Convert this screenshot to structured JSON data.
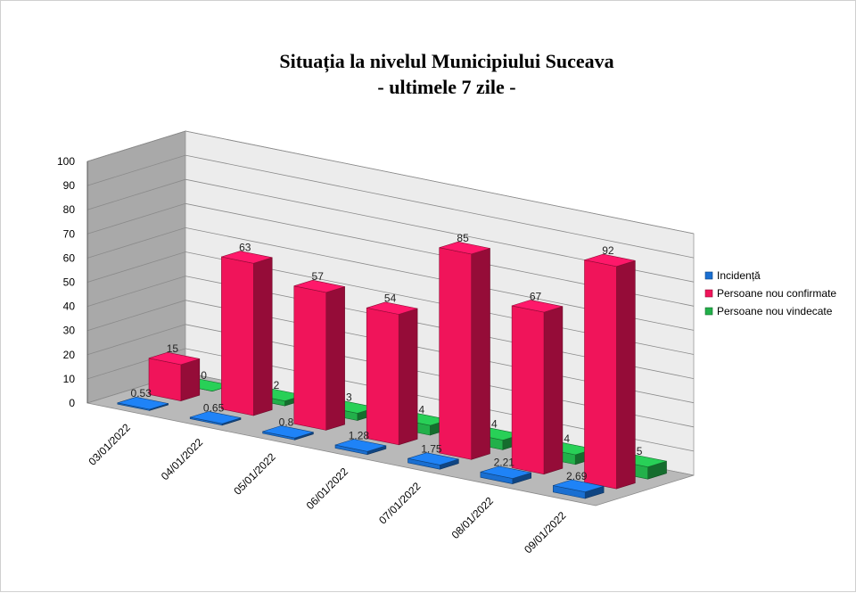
{
  "chart_data": {
    "type": "bar",
    "title": "Situația la nivelul Municipiului Suceava",
    "subtitle": "- ultimele 7 zile -",
    "categories": [
      "03/01/2022",
      "04/01/2022",
      "05/01/2022",
      "06/01/2022",
      "07/01/2022",
      "08/01/2022",
      "09/01/2022"
    ],
    "series": [
      {
        "name": "Incidență",
        "color": "#1a6fd1",
        "values": [
          0.53,
          0.65,
          0.8,
          1.28,
          1.75,
          2.21,
          2.69
        ],
        "labels": [
          "0.53",
          "0.65",
          "0.8",
          "1.28",
          "1.75",
          "2.21",
          "2.69"
        ]
      },
      {
        "name": "Persoane nou confirmate",
        "color": "#f0145a",
        "values": [
          15,
          63,
          57,
          54,
          85,
          67,
          92
        ],
        "labels": [
          "15",
          "63",
          "57",
          "54",
          "85",
          "67",
          "92"
        ]
      },
      {
        "name": "Persoane nou vindecate",
        "color": "#22b04a",
        "values": [
          0,
          2,
          3,
          4,
          4,
          4,
          5
        ],
        "labels": [
          "0",
          "2",
          "3",
          "4",
          "4",
          "4",
          "5"
        ]
      }
    ],
    "ylim": [
      0,
      100
    ],
    "yticks": [
      "0",
      "10",
      "20",
      "30",
      "40",
      "50",
      "60",
      "70",
      "80",
      "90",
      "100"
    ],
    "xlabel": "",
    "ylabel": "",
    "legend": "right",
    "grid": true,
    "style": "3d-clustered-column"
  }
}
